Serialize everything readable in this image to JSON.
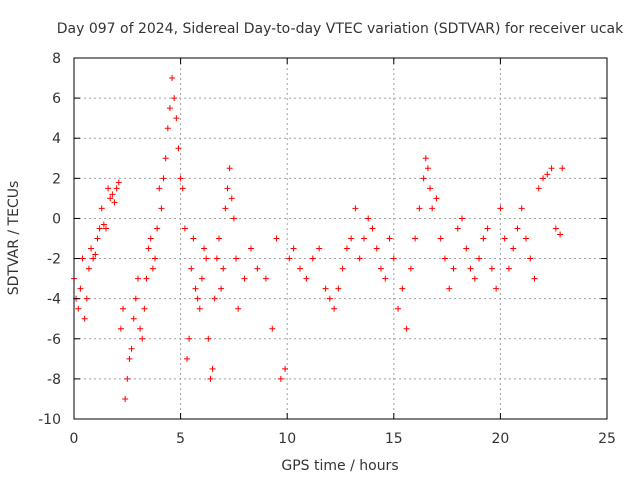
{
  "chart_data": {
    "type": "scatter",
    "title": "Day 097 of 2024, Sidereal Day-to-day VTEC variation (SDTVAR) for receiver ucak",
    "xlabel": "GPS time / hours",
    "ylabel": "SDTVAR / TECUs",
    "xlim": [
      0,
      25
    ],
    "ylim": [
      -10,
      8
    ],
    "xticks": [
      0,
      5,
      10,
      15,
      20,
      25
    ],
    "xtick_labels": [
      "0",
      "5",
      "10",
      "15",
      "20",
      "25"
    ],
    "yticks": [
      -10,
      -8,
      -6,
      -4,
      -2,
      0,
      2,
      4,
      6,
      8
    ],
    "ytick_labels": [
      "-10",
      "-8",
      "-6",
      "-4",
      "-2",
      "0",
      "2",
      "4",
      "6",
      "8"
    ],
    "grid": true,
    "marker": "+",
    "color": "#ff0000",
    "series": [
      {
        "name": "SDTVAR",
        "x": [
          0.0,
          0.1,
          0.2,
          0.3,
          0.4,
          0.5,
          0.6,
          0.7,
          0.8,
          0.9,
          1.0,
          1.1,
          1.2,
          1.3,
          1.4,
          1.5,
          1.6,
          1.7,
          1.8,
          1.9,
          2.0,
          2.1,
          2.2,
          2.3,
          2.4,
          2.5,
          2.6,
          2.7,
          2.8,
          2.9,
          3.0,
          3.1,
          3.2,
          3.3,
          3.4,
          3.5,
          3.6,
          3.7,
          3.8,
          3.9,
          4.0,
          4.1,
          4.2,
          4.3,
          4.4,
          4.5,
          4.6,
          4.7,
          4.8,
          4.9,
          5.0,
          5.1,
          5.2,
          5.3,
          5.4,
          5.5,
          5.6,
          5.7,
          5.8,
          5.9,
          6.0,
          6.1,
          6.2,
          6.3,
          6.4,
          6.5,
          6.6,
          6.7,
          6.8,
          6.9,
          7.0,
          7.1,
          7.2,
          7.3,
          7.4,
          7.5,
          7.6,
          7.7,
          8.0,
          8.3,
          8.6,
          9.0,
          9.3,
          9.5,
          9.7,
          9.9,
          10.1,
          10.3,
          10.6,
          10.9,
          11.2,
          11.5,
          11.8,
          12.0,
          12.2,
          12.4,
          12.6,
          12.8,
          13.0,
          13.2,
          13.4,
          13.6,
          13.8,
          14.0,
          14.2,
          14.4,
          14.6,
          14.8,
          15.0,
          15.2,
          15.4,
          15.6,
          15.8,
          16.0,
          16.2,
          16.4,
          16.5,
          16.6,
          16.7,
          16.8,
          17.0,
          17.2,
          17.4,
          17.6,
          17.8,
          18.0,
          18.2,
          18.4,
          18.6,
          18.8,
          19.0,
          19.2,
          19.4,
          19.6,
          19.8,
          20.0,
          20.2,
          20.4,
          20.6,
          20.8,
          21.0,
          21.2,
          21.4,
          21.6,
          21.8,
          22.0,
          22.2,
          22.4,
          22.6,
          22.8,
          22.9
        ],
        "y": [
          -3.0,
          -4.0,
          -4.5,
          -3.5,
          -2.0,
          -5.0,
          -4.0,
          -2.5,
          -1.5,
          -2.0,
          -1.8,
          -1.0,
          -0.5,
          0.5,
          -0.3,
          -0.5,
          1.5,
          1.0,
          1.2,
          0.8,
          1.5,
          1.8,
          -5.5,
          -4.5,
          -9.0,
          -8.0,
          -7.0,
          -6.5,
          -5.0,
          -4.0,
          -3.0,
          -5.5,
          -6.0,
          -4.5,
          -3.0,
          -1.5,
          -1.0,
          -2.5,
          -2.0,
          -0.5,
          1.5,
          0.5,
          2.0,
          3.0,
          4.5,
          5.5,
          7.0,
          6.0,
          5.0,
          3.5,
          2.0,
          1.5,
          -0.5,
          -7.0,
          -6.0,
          -2.5,
          -1.0,
          -3.5,
          -4.0,
          -4.5,
          -3.0,
          -1.5,
          -2.0,
          -6.0,
          -8.0,
          -7.5,
          -4.0,
          -2.0,
          -1.0,
          -3.5,
          -2.5,
          0.5,
          1.5,
          2.5,
          1.0,
          0.0,
          -2.0,
          -4.5,
          -3.0,
          -1.5,
          -2.5,
          -3.0,
          -5.5,
          -1.0,
          -8.0,
          -7.5,
          -2.0,
          -1.5,
          -2.5,
          -3.0,
          -2.0,
          -1.5,
          -3.5,
          -4.0,
          -4.5,
          -3.5,
          -2.5,
          -1.5,
          -1.0,
          0.5,
          -2.0,
          -1.0,
          0.0,
          -0.5,
          -1.5,
          -2.5,
          -3.0,
          -1.0,
          -2.0,
          -4.5,
          -3.5,
          -5.5,
          -2.5,
          -1.0,
          0.5,
          2.0,
          3.0,
          2.5,
          1.5,
          0.5,
          1.0,
          -1.0,
          -2.0,
          -3.5,
          -2.5,
          -0.5,
          0.0,
          -1.5,
          -2.5,
          -3.0,
          -2.0,
          -1.0,
          -0.5,
          -2.5,
          -3.5,
          0.5,
          -1.0,
          -2.5,
          -1.5,
          -0.5,
          0.5,
          -1.0,
          -2.0,
          -3.0,
          1.5,
          2.0,
          2.2,
          2.5,
          -0.5,
          -0.8,
          2.5
        ]
      }
    ]
  }
}
